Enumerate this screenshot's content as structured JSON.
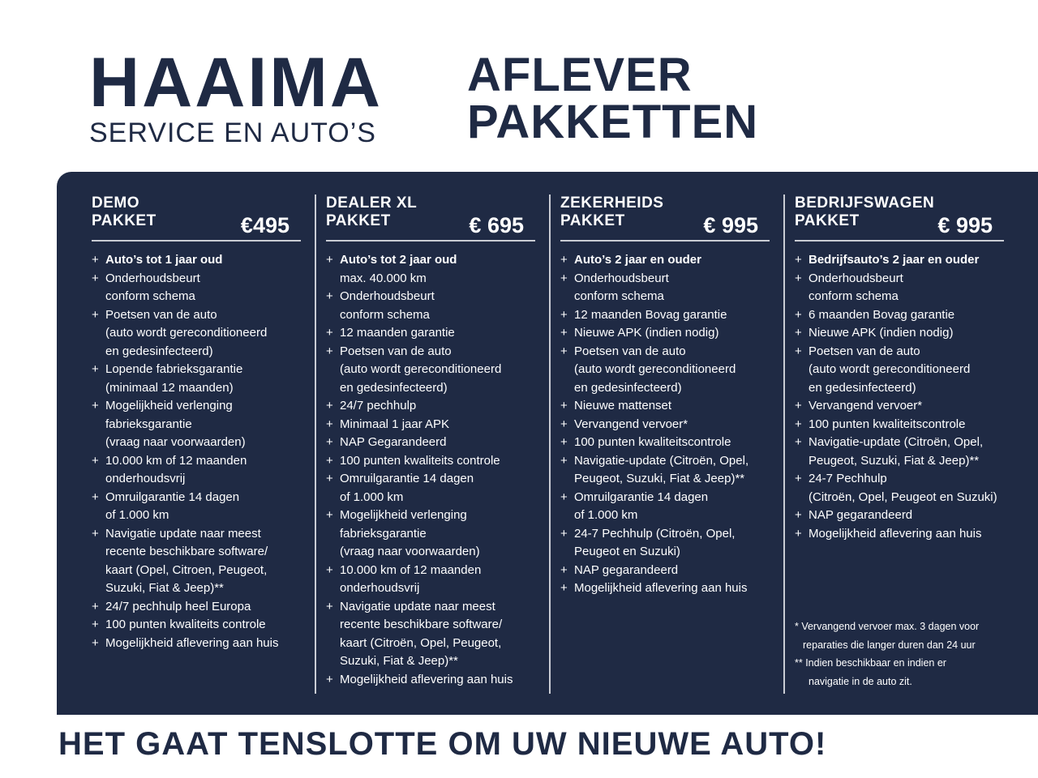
{
  "brand": {
    "name": "HAAIMA",
    "sub": "SERVICE EN AUTO’S"
  },
  "title": [
    "AFLEVER",
    "PAKKETTEN"
  ],
  "packages": [
    {
      "label": [
        "DEMO",
        "PAKKET"
      ],
      "price": "€495",
      "items": [
        [
          "Auto’s tot 1 jaar oud"
        ],
        [
          "Onderhoudsbeurt",
          "conform schema"
        ],
        [
          "Poetsen van de auto",
          "(auto wordt gereconditioneerd",
          "en gedesinfecteerd)"
        ],
        [
          "Lopende fabrieksgarantie",
          "(minimaal 12 maanden)"
        ],
        [
          "Mogelijkheid verlenging",
          "fabrieksgarantie",
          "(vraag naar voorwaarden)"
        ],
        [
          "10.000 km of 12 maanden",
          "onderhoudsvrij"
        ],
        [
          "Omruilgarantie 14 dagen",
          "of 1.000 km"
        ],
        [
          "Navigatie update naar meest",
          "recente beschikbare software/",
          "kaart (Opel, Citroen,  Peugeot,",
          "Suzuki, Fiat & Jeep)**"
        ],
        [
          "24/7 pechhulp heel Europa"
        ],
        [
          "100 punten kwaliteits controle"
        ],
        [
          "Mogelijkheid aflevering aan huis"
        ]
      ]
    },
    {
      "label": [
        "DEALER XL",
        "PAKKET"
      ],
      "price": "€ 695",
      "items": [
        [
          "Auto’s tot 2 jaar oud",
          "max. 40.000 km"
        ],
        [
          "Onderhoudsbeurt",
          "conform schema"
        ],
        [
          "12 maanden garantie"
        ],
        [
          "Poetsen van de auto",
          "(auto wordt gereconditioneerd",
          "en gedesinfecteerd)"
        ],
        [
          "24/7 pechhulp"
        ],
        [
          "Minimaal 1 jaar APK"
        ],
        [
          "NAP Gegarandeerd"
        ],
        [
          "100 punten kwaliteits controle"
        ],
        [
          "Omruilgarantie 14 dagen",
          "of 1.000 km"
        ],
        [
          "Mogelijkheid verlenging",
          "fabrieksgarantie",
          "(vraag naar voorwaarden)"
        ],
        [
          "10.000 km of 12 maanden",
          "onderhoudsvrij"
        ],
        [
          "Navigatie update naar meest",
          "recente beschikbare software/",
          "kaart (Citroën, Opel, Peugeot,",
          "Suzuki, Fiat & Jeep)**"
        ],
        [
          "Mogelijkheid aflevering aan huis"
        ]
      ]
    },
    {
      "label": [
        "ZEKERHEIDS",
        "PAKKET"
      ],
      "price": "€ 995",
      "items": [
        [
          "Auto’s 2 jaar en ouder"
        ],
        [
          "Onderhoudsbeurt",
          "conform schema"
        ],
        [
          "12 maanden Bovag garantie"
        ],
        [
          "Nieuwe APK (indien nodig)"
        ],
        [
          "Poetsen van de auto",
          "(auto wordt gereconditioneerd",
          "en gedesinfecteerd)"
        ],
        [
          "Nieuwe mattenset"
        ],
        [
          "Vervangend vervoer*"
        ],
        [
          "100 punten kwaliteitscontrole"
        ],
        [
          "Navigatie-update (Citroën, Opel,",
          "Peugeot, Suzuki, Fiat & Jeep)**"
        ],
        [
          "Omruilgarantie 14 dagen",
          "of 1.000 km"
        ],
        [
          "24-7 Pechhulp (Citroën, Opel,",
          "Peugeot en Suzuki)"
        ],
        [
          "NAP gegarandeerd"
        ],
        [
          "Mogelijkheid aflevering aan huis"
        ]
      ]
    },
    {
      "label": [
        "BEDRIJFSWAGEN",
        "PAKKET"
      ],
      "price": "€ 995",
      "items": [
        [
          "Bedrijfsauto’s 2 jaar en ouder"
        ],
        [
          "Onderhoudsbeurt",
          "conform schema"
        ],
        [
          "6 maanden Bovag garantie"
        ],
        [
          "Nieuwe APK (indien nodig)"
        ],
        [
          "Poetsen van de auto",
          "(auto wordt gereconditioneerd",
          "en gedesinfecteerd)"
        ],
        [
          "Vervangend vervoer*"
        ],
        [
          "100 punten kwaliteitscontrole"
        ],
        [
          "Navigatie-update (Citroën, Opel,",
          "Peugeot, Suzuki, Fiat & Jeep)**"
        ],
        [
          "24-7 Pechhulp",
          "(Citroën, Opel, Peugeot en Suzuki)"
        ],
        [
          "NAP gegarandeerd"
        ],
        [
          "Mogelijkheid aflevering aan huis"
        ]
      ]
    }
  ],
  "notes": [
    "* Vervangend vervoer max. 3 dagen voor",
    "reparaties die langer duren dan 24 uur",
    "** Indien beschikbaar en indien er",
    "navigatie in de auto zit."
  ],
  "slogan": "HET GAAT TENSLOTTE OM UW NIEUWE AUTO!",
  "colors": {
    "navy": "#1f2a44",
    "white": "#ffffff"
  }
}
